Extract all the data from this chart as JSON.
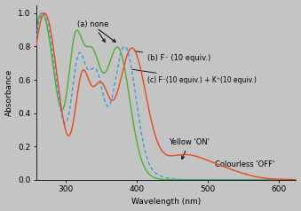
{
  "background_color": "#c4c4c4",
  "xlim": [
    258,
    625
  ],
  "ylim": [
    0,
    1.05
  ],
  "xlabel": "Wavelength (nm)",
  "ylabel": "Absorbance",
  "xticks": [
    300,
    400,
    500,
    600
  ],
  "yticks": [
    0,
    0.2,
    0.4,
    0.6,
    0.8,
    1
  ],
  "series": {
    "a_color": "#e84820",
    "b_color": "#3a9fd0",
    "c_color": "#4cb030"
  }
}
